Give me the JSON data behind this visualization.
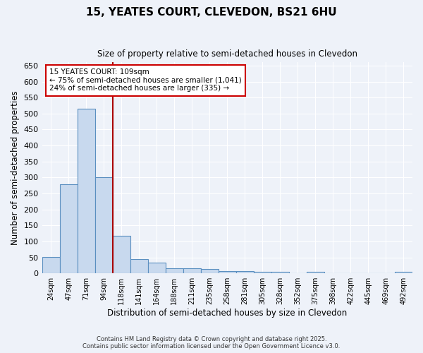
{
  "title1": "15, YEATES COURT, CLEVEDON, BS21 6HU",
  "title2": "Size of property relative to semi-detached houses in Clevedon",
  "xlabel": "Distribution of semi-detached houses by size in Clevedon",
  "ylabel": "Number of semi-detached properties",
  "categories": [
    "24sqm",
    "47sqm",
    "71sqm",
    "94sqm",
    "118sqm",
    "141sqm",
    "164sqm",
    "188sqm",
    "211sqm",
    "235sqm",
    "258sqm",
    "281sqm",
    "305sqm",
    "328sqm",
    "352sqm",
    "375sqm",
    "398sqm",
    "422sqm",
    "445sqm",
    "469sqm",
    "492sqm"
  ],
  "values": [
    52,
    278,
    516,
    301,
    118,
    45,
    33,
    17,
    15,
    13,
    7,
    8,
    5,
    4,
    0,
    5,
    0,
    0,
    0,
    0,
    5
  ],
  "bar_color": "#c8d9ee",
  "bar_edge_color": "#5a8fc0",
  "red_line_color": "#aa0000",
  "annotation_text": "15 YEATES COURT: 109sqm\n← 75% of semi-detached houses are smaller (1,041)\n24% of semi-detached houses are larger (335) →",
  "annotation_box_color": "#ffffff",
  "annotation_box_edge": "#cc0000",
  "ylim": [
    0,
    660
  ],
  "yticks": [
    0,
    50,
    100,
    150,
    200,
    250,
    300,
    350,
    400,
    450,
    500,
    550,
    600,
    650
  ],
  "footer1": "Contains HM Land Registry data © Crown copyright and database right 2025.",
  "footer2": "Contains public sector information licensed under the Open Government Licence v3.0.",
  "background_color": "#eef2f9",
  "grid_color": "#ffffff"
}
